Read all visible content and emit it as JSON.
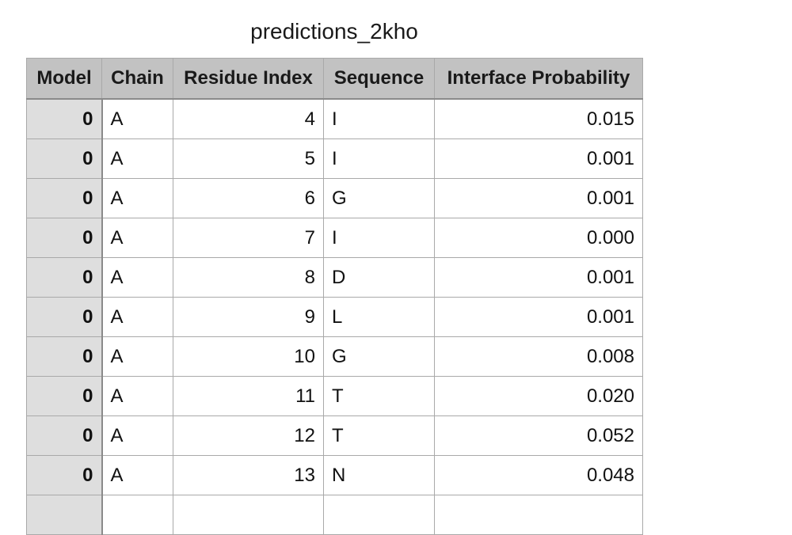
{
  "sheet": {
    "title": "predictions_2kho"
  },
  "table": {
    "headers": [
      "Model",
      "Chain",
      "Residue Index",
      "Sequence",
      "Interface Probability"
    ],
    "rows": [
      [
        "0",
        "A",
        "4",
        "I",
        "0.015"
      ],
      [
        "0",
        "A",
        "5",
        "I",
        "0.001"
      ],
      [
        "0",
        "A",
        "6",
        "G",
        "0.001"
      ],
      [
        "0",
        "A",
        "7",
        "I",
        "0.000"
      ],
      [
        "0",
        "A",
        "8",
        "D",
        "0.001"
      ],
      [
        "0",
        "A",
        "9",
        "L",
        "0.001"
      ],
      [
        "0",
        "A",
        "10",
        "G",
        "0.008"
      ],
      [
        "0",
        "A",
        "11",
        "T",
        "0.020"
      ],
      [
        "0",
        "A",
        "12",
        "T",
        "0.052"
      ],
      [
        "0",
        "A",
        "13",
        "N",
        "0.048"
      ],
      [
        "",
        "",
        "",
        "",
        ""
      ]
    ]
  }
}
